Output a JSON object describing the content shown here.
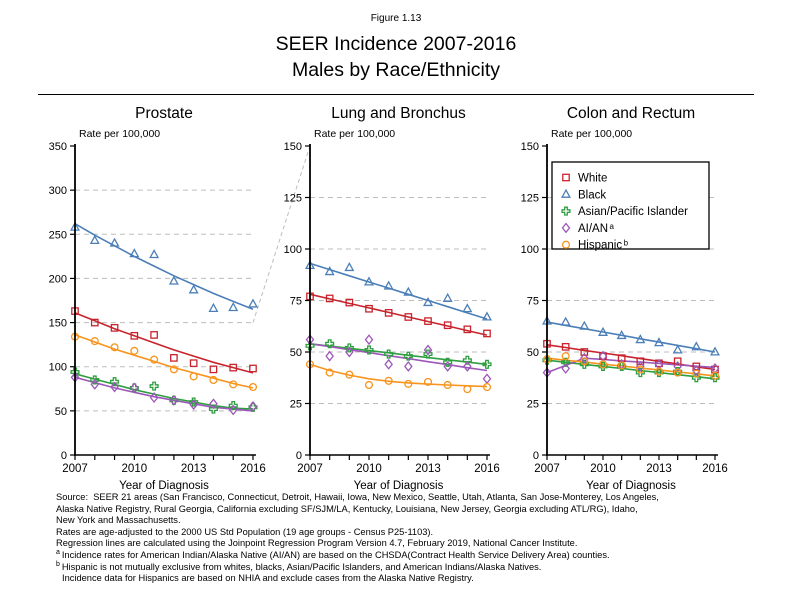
{
  "header": {
    "figure_label": "Figure 1.13",
    "title_line1": "SEER Incidence 2007-2016",
    "title_line2": "Males by Race/Ethnicity"
  },
  "colors": {
    "white": "#C8232C",
    "black": "#4C7FB8",
    "api": "#2F9E41",
    "aian": "#9C57B8",
    "hispanic": "#F7941D",
    "grid": "#BDBDBD",
    "axis": "#000000"
  },
  "legend": {
    "position": "top of Colon and Rectum panel",
    "items": [
      {
        "label": "White",
        "sup": "",
        "marker": "square",
        "color_key": "white"
      },
      {
        "label": "Black",
        "sup": "",
        "marker": "triangle",
        "color_key": "black"
      },
      {
        "label": "Asian/Pacific Islander",
        "sup": "",
        "marker": "plus",
        "color_key": "api"
      },
      {
        "label": "AI/AN",
        "sup": "a",
        "marker": "diamond",
        "color_key": "aian"
      },
      {
        "label": "Hispanic",
        "sup": "b",
        "marker": "circle",
        "color_key": "hispanic"
      }
    ]
  },
  "x_axis": {
    "label": "Year of Diagnosis",
    "major_ticks": [
      2007,
      2010,
      2013,
      2016
    ]
  },
  "chart_data": [
    {
      "type": "scatter",
      "title": "Prostate",
      "ylabel": "Rate per 100,000",
      "xlabel": "Year of Diagnosis",
      "ylim": [
        0,
        350
      ],
      "yticks": [
        350,
        300,
        250,
        200,
        150,
        100,
        50,
        0
      ],
      "grid": "dashed horizontal at major ticks",
      "x": [
        2007,
        2008,
        2009,
        2010,
        2011,
        2012,
        2013,
        2014,
        2015,
        2016
      ],
      "series": [
        {
          "name": "White",
          "marker": "square",
          "color_key": "white",
          "values": [
            163,
            150,
            144,
            135,
            136,
            110,
            104,
            97,
            99,
            98
          ],
          "trend": [
            161,
            152,
            143,
            135,
            127,
            119,
            112,
            105,
            99,
            93
          ]
        },
        {
          "name": "Black",
          "marker": "triangle",
          "color_key": "black",
          "values": [
            258,
            243,
            240,
            228,
            227,
            197,
            187,
            166,
            167,
            171
          ],
          "trend": [
            262,
            249,
            237,
            225,
            214,
            203,
            193,
            183,
            174,
            165
          ]
        },
        {
          "name": "Asian/Pacific Islander",
          "marker": "plus",
          "color_key": "api",
          "values": [
            94,
            85,
            83,
            76,
            78,
            62,
            60,
            52,
            56,
            54
          ],
          "trend": [
            92,
            86,
            80,
            74,
            69,
            64,
            60,
            56,
            53,
            52
          ]
        },
        {
          "name": "AI/AN",
          "marker": "diamond",
          "color_key": "aian",
          "values": [
            88,
            80,
            77,
            76,
            65,
            62,
            57,
            58,
            51,
            55
          ],
          "trend": [
            88,
            82,
            76,
            71,
            66,
            62,
            58,
            54,
            52,
            50
          ]
        },
        {
          "name": "Hispanic",
          "marker": "circle",
          "color_key": "hispanic",
          "values": [
            134,
            129,
            122,
            118,
            108,
            97,
            89,
            85,
            80,
            77
          ],
          "trend": [
            136,
            128,
            120,
            113,
            106,
            99,
            93,
            87,
            81,
            76
          ]
        }
      ]
    },
    {
      "type": "scatter",
      "title": "Lung and Bronchus",
      "ylabel": "Rate per 100,000",
      "xlabel": "Year of Diagnosis",
      "ylim": [
        0,
        150
      ],
      "yticks": [
        150,
        125,
        100,
        75,
        50,
        25,
        0
      ],
      "grid": "dashed horizontal at major ticks",
      "x": [
        2007,
        2008,
        2009,
        2010,
        2011,
        2012,
        2013,
        2014,
        2015,
        2016
      ],
      "series": [
        {
          "name": "White",
          "marker": "square",
          "color_key": "white",
          "values": [
            77,
            76,
            74,
            71,
            69,
            67,
            65,
            63,
            61,
            59
          ],
          "trend": [
            78,
            75.8,
            73.6,
            71.4,
            69.2,
            67,
            64.8,
            62.6,
            60.4,
            58.2
          ]
        },
        {
          "name": "Black",
          "marker": "triangle",
          "color_key": "black",
          "values": [
            92,
            89,
            91,
            84,
            82,
            79,
            74,
            76,
            71,
            67
          ],
          "trend": [
            93,
            90,
            87,
            84,
            81,
            78,
            75,
            72,
            69,
            66
          ]
        },
        {
          "name": "Asian/Pacific Islander",
          "marker": "plus",
          "color_key": "api",
          "values": [
            53,
            54,
            52,
            51,
            49,
            48,
            49,
            45,
            46,
            44
          ],
          "trend": [
            54,
            52.9,
            51.8,
            50.7,
            49.6,
            48.4,
            47.3,
            46.2,
            45.1,
            44
          ]
        },
        {
          "name": "AI/AN",
          "marker": "diamond",
          "color_key": "aian",
          "values": [
            56,
            48,
            50,
            56,
            44,
            43,
            51,
            43,
            43,
            37
          ],
          "trend": [
            54,
            52.6,
            51.1,
            49.7,
            48.2,
            46.8,
            45.3,
            43.9,
            42.4,
            41
          ]
        },
        {
          "name": "Hispanic",
          "marker": "circle",
          "color_key": "hispanic",
          "values": [
            44,
            40,
            39,
            34,
            36,
            34.5,
            35.5,
            34,
            32,
            33
          ],
          "trend": [
            44,
            41,
            38.8,
            37,
            35.8,
            35,
            34.4,
            34,
            33.6,
            33.2
          ]
        }
      ]
    },
    {
      "type": "scatter",
      "title": "Colon and Rectum",
      "ylabel": "Rate per 100,000",
      "xlabel": "Year of Diagnosis",
      "ylim": [
        0,
        150
      ],
      "yticks": [
        150,
        125,
        100,
        75,
        50,
        25,
        0
      ],
      "grid": "dashed horizontal at major ticks",
      "x": [
        2007,
        2008,
        2009,
        2010,
        2011,
        2012,
        2013,
        2014,
        2015,
        2016
      ],
      "series": [
        {
          "name": "White",
          "marker": "square",
          "color_key": "white",
          "values": [
            54,
            52.5,
            50,
            48,
            47,
            45.5,
            44.5,
            45.5,
            43,
            41.5
          ],
          "trend": [
            53.5,
            52.2,
            50.8,
            49.5,
            48.2,
            46.8,
            45.5,
            44.2,
            42.8,
            41.5
          ]
        },
        {
          "name": "Black",
          "marker": "triangle",
          "color_key": "black",
          "values": [
            65,
            64.5,
            62.5,
            59.5,
            58,
            56,
            54.5,
            51,
            52.5,
            50
          ],
          "trend": [
            64.5,
            62.9,
            61.3,
            59.7,
            58.1,
            56.4,
            54.8,
            53.2,
            51.6,
            50
          ]
        },
        {
          "name": "Asian/Pacific Islander",
          "marker": "plus",
          "color_key": "api",
          "values": [
            46,
            45,
            44,
            43,
            43,
            40,
            40,
            40.5,
            37.5,
            37.5
          ],
          "trend": [
            46,
            45,
            44,
            43,
            42,
            41,
            40,
            39,
            38,
            37
          ]
        },
        {
          "name": "AI/AN",
          "marker": "diamond",
          "color_key": "aian",
          "values": [
            40,
            42,
            47,
            48,
            44,
            43,
            44,
            43,
            41,
            42
          ],
          "trend": [
            40,
            43.5,
            47,
            46.4,
            45.7,
            45.1,
            44.4,
            43.8,
            43.1,
            42.5
          ]
        },
        {
          "name": "Hispanic",
          "marker": "circle",
          "color_key": "hispanic",
          "values": [
            46.5,
            48,
            45.5,
            44,
            43.5,
            41.5,
            40.5,
            40,
            39.5,
            38.5
          ],
          "trend": [
            47,
            46,
            45.1,
            44.1,
            43.2,
            42.2,
            41.3,
            40.3,
            39.4,
            38.4
          ]
        }
      ]
    }
  ],
  "footnotes": [
    {
      "sup": "",
      "indent": false,
      "text": "Source:  SEER 21 areas (San Francisco, Connecticut, Detroit, Hawaii, Iowa, New Mexico, Seattle, Utah, Atlanta, San Jose-Monterey, Los Angeles,"
    },
    {
      "sup": "",
      "indent": false,
      "text": "Alaska Native Registry, Rural Georgia, California excluding SF/SJM/LA, Kentucky, Louisiana, New Jersey, Georgia excluding ATL/RG), Idaho,"
    },
    {
      "sup": "",
      "indent": false,
      "text": "New York and Massachusetts."
    },
    {
      "sup": "",
      "indent": false,
      "text": "Rates are age-adjusted to the 2000 US Std Population (19 age groups - Census P25-1103)."
    },
    {
      "sup": "",
      "indent": false,
      "text": "Regression lines are calculated using the Joinpoint Regression Program Version 4.7, February 2019, National Cancer Institute."
    },
    {
      "sup": "a",
      "indent": false,
      "text": "Incidence rates for American Indian/Alaska Native (AI/AN) are based on the CHSDA(Contract Health Service Delivery Area) counties."
    },
    {
      "sup": "b",
      "indent": false,
      "text": "Hispanic is not mutually exclusive from whites, blacks, Asian/Pacific Islanders, and American Indians/Alaska Natives."
    },
    {
      "sup": "",
      "indent": true,
      "text": "Incidence data for Hispanics are based on NHIA and exclude cases from the Alaska Native Registry."
    }
  ]
}
